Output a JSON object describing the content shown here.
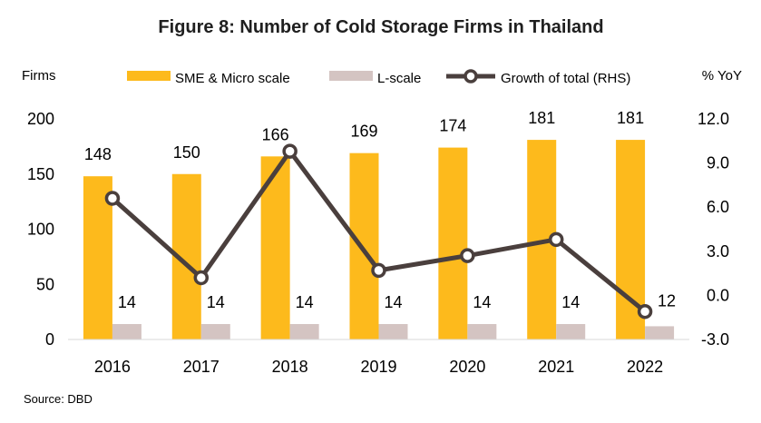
{
  "chart_data": {
    "type": "bar+line",
    "title": "Figure 8: Number of Cold Storage Firms in Thailand",
    "ylabel_left": "Firms",
    "ylabel_right": "% YoY",
    "source": "Source: DBD",
    "categories": [
      "2016",
      "2017",
      "2018",
      "2019",
      "2020",
      "2021",
      "2022"
    ],
    "ylim_left": [
      0,
      200
    ],
    "yticks_left": [
      "0",
      "50",
      "100",
      "150",
      "200"
    ],
    "ylim_right": [
      -3.0,
      12.0
    ],
    "yticks_right": [
      "-3.0",
      "0.0",
      "3.0",
      "6.0",
      "9.0",
      "12.0"
    ],
    "legend_position": "top",
    "series": [
      {
        "name": "SME & Micro scale",
        "type": "bar",
        "axis": "left",
        "color": "#FDBA1C",
        "values": [
          148,
          150,
          166,
          169,
          174,
          181,
          181
        ],
        "labels": [
          "148",
          "150",
          "166",
          "169",
          "174",
          "181",
          "181"
        ]
      },
      {
        "name": "L-scale",
        "type": "bar",
        "axis": "left",
        "color": "#D4C4C2",
        "values": [
          14,
          14,
          14,
          14,
          14,
          14,
          12
        ],
        "labels": [
          "14",
          "14",
          "14",
          "14",
          "14",
          "14",
          "12"
        ]
      },
      {
        "name": "Growth of total (RHS)",
        "type": "line",
        "axis": "right",
        "color": "#4A3F3D",
        "values": [
          6.6,
          1.2,
          9.8,
          1.7,
          2.7,
          3.8,
          -1.1
        ]
      }
    ]
  }
}
